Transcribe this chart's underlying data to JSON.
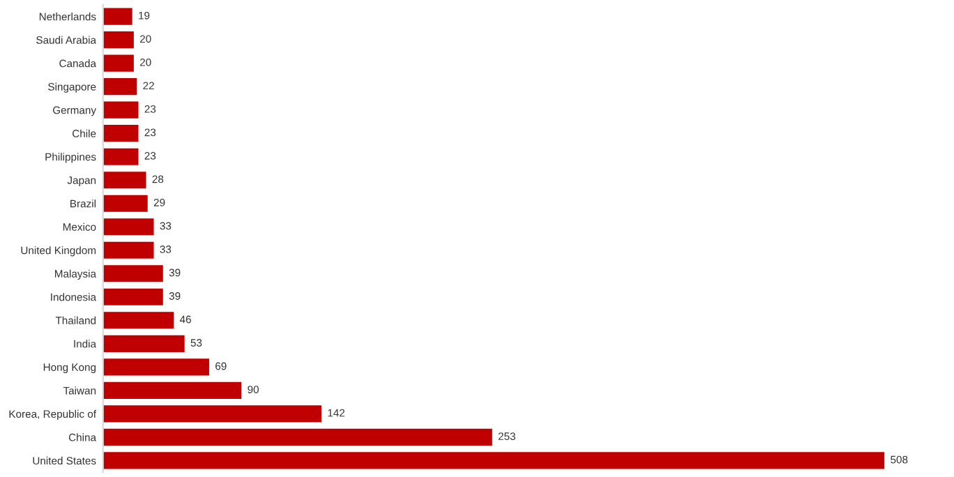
{
  "chart_data": {
    "type": "bar",
    "orientation": "horizontal",
    "categories": [
      "Netherlands",
      "Saudi Arabia",
      "Canada",
      "Singapore",
      "Germany",
      "Chile",
      "Philippines",
      "Japan",
      "Brazil",
      "Mexico",
      "United Kingdom",
      "Malaysia",
      "Indonesia",
      "Thailand",
      "India",
      "Hong Kong",
      "Taiwan",
      "Korea, Republic of",
      "China",
      "United States"
    ],
    "values": [
      19,
      20,
      20,
      22,
      23,
      23,
      23,
      28,
      29,
      33,
      33,
      39,
      39,
      46,
      53,
      69,
      90,
      142,
      253,
      508
    ],
    "color": "#c00000",
    "data_labels": true,
    "grid": false,
    "legend": false
  }
}
